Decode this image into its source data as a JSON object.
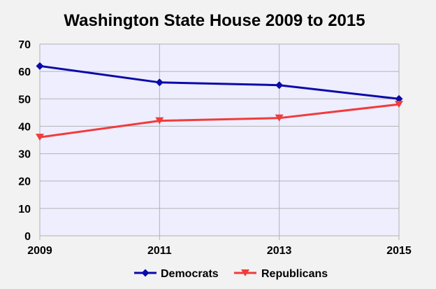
{
  "chart_data": {
    "type": "line",
    "title": "Washington State House 2009 to 2015",
    "xlabel": "",
    "ylabel": "",
    "x": [
      "2009",
      "2011",
      "2013",
      "2015"
    ],
    "ylim": [
      0,
      70
    ],
    "yticks": [
      0,
      10,
      20,
      30,
      40,
      50,
      60,
      70
    ],
    "grid": true,
    "legend_position": "bottom",
    "plot_background": "#eeeeff",
    "series": [
      {
        "name": "Democrats",
        "values": [
          62,
          56,
          55,
          50
        ],
        "color": "#0a0aa8",
        "marker": "diamond"
      },
      {
        "name": "Republicans",
        "values": [
          36,
          42,
          43,
          48
        ],
        "color": "#f03c3c",
        "marker": "triangle-down"
      }
    ]
  }
}
